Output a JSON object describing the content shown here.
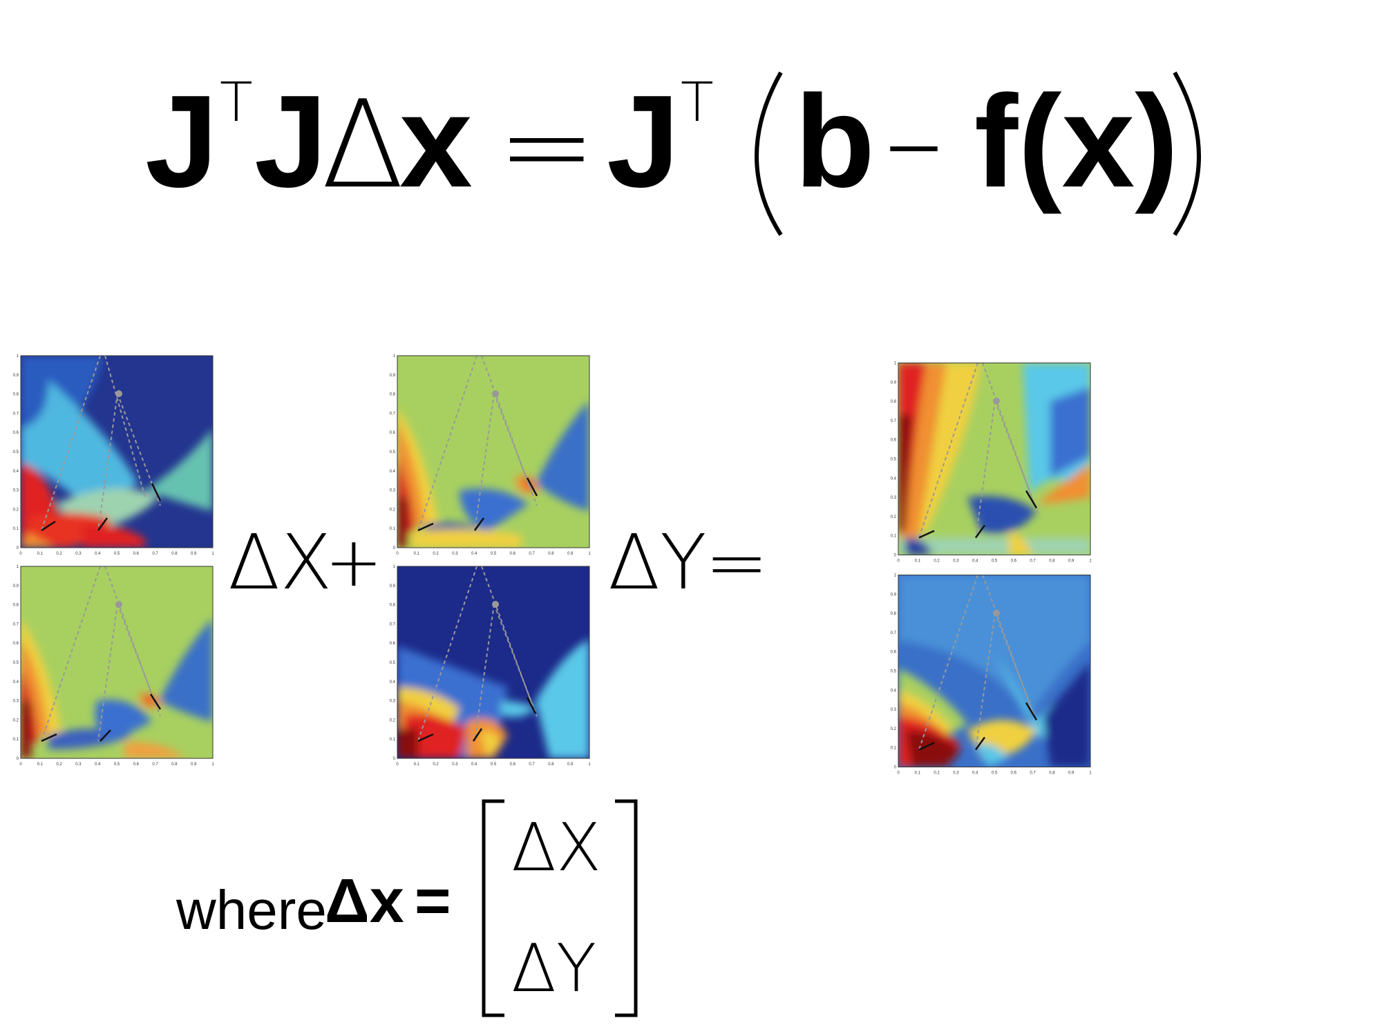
{
  "equation": {
    "lhs_J": "J",
    "T1": "T",
    "lhs_J2": "J",
    "delta": "Δ",
    "x_bold": "x",
    "equals": "=",
    "rhs_J": "J",
    "T2": "T",
    "b": "b",
    "minus": "–",
    "fx": "f(x)"
  },
  "operators": {
    "dX": "ΔX",
    "plus": "+",
    "dY": "ΔY",
    "eq": "="
  },
  "where": {
    "word": "where",
    "delta_x": "Δx",
    "eq": "=",
    "row1": "ΔX",
    "row2": "ΔY"
  },
  "ticks": [
    "0",
    "0.1",
    "0.2",
    "0.3",
    "0.4",
    "0.5",
    "0.6",
    "0.7",
    "0.8",
    "0.9",
    "1"
  ],
  "colors": {
    "dark_blue": "#1a2a8c",
    "blue": "#3a6fd0",
    "cyan": "#5ac8e8",
    "teal": "#6cc0b0",
    "green": "#a8d060",
    "yellow": "#f0e040",
    "orange": "#f09030",
    "red": "#e02020",
    "dark_red": "#8a0a0a"
  }
}
